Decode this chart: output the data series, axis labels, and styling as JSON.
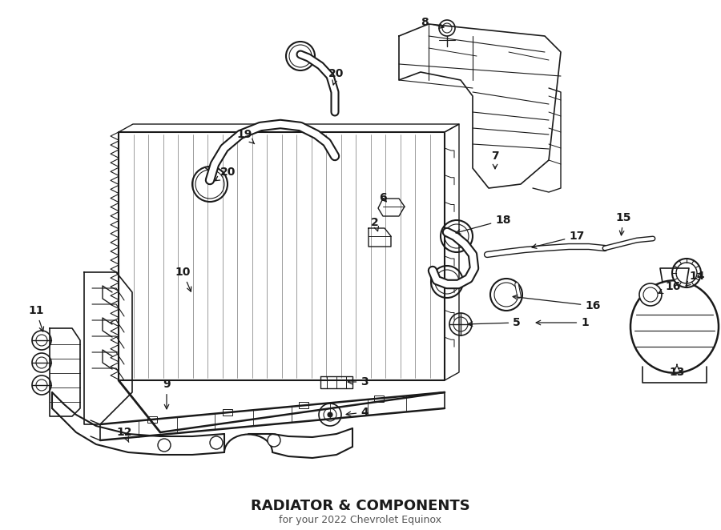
{
  "title": "RADIATOR & COMPONENTS",
  "subtitle": "for your 2022 Chevrolet Equinox",
  "bg_color": "#ffffff",
  "line_color": "#1a1a1a",
  "figsize": [
    9.0,
    6.62
  ],
  "dpi": 100
}
